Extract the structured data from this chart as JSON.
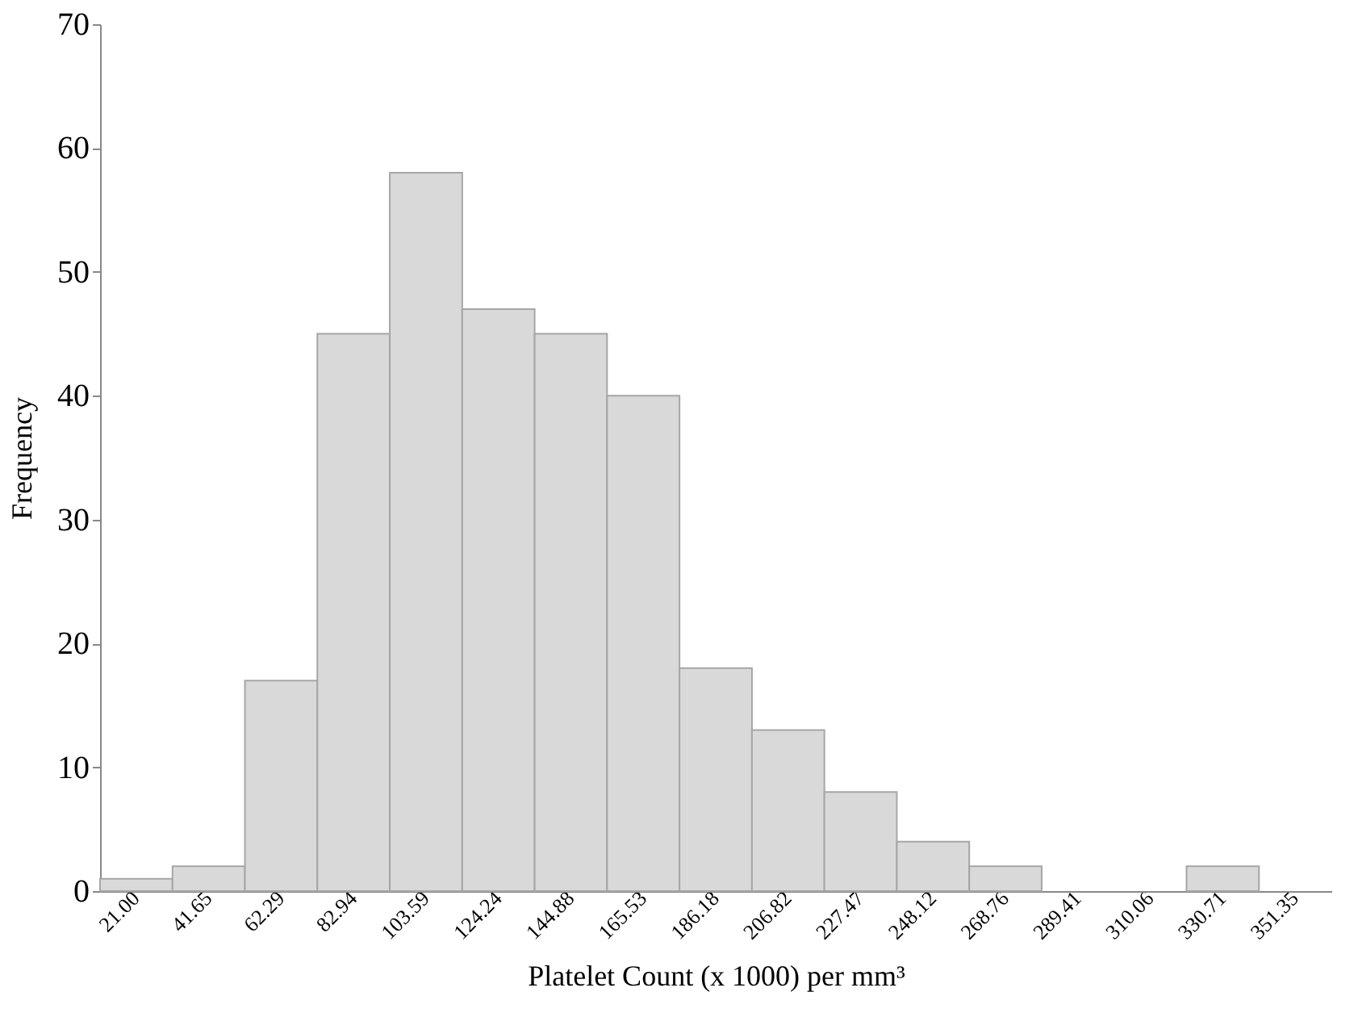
{
  "chart_data": {
    "type": "bar",
    "categories": [
      "21.00",
      "41.65",
      "62.29",
      "82.94",
      "103.59",
      "124.24",
      "144.88",
      "165.53",
      "186.18",
      "206.82",
      "227.47",
      "248.12",
      "268.76",
      "289.41",
      "310.06",
      "330.71",
      "351.35"
    ],
    "values": [
      1,
      2,
      17,
      45,
      58,
      47,
      45,
      40,
      18,
      13,
      8,
      4,
      2,
      0,
      0,
      2,
      0
    ],
    "color": "#d9d9d9",
    "xlabel": "Platelet Count (x 1000) per mm³",
    "ylabel": "Frequency",
    "ylim": [
      0,
      70
    ],
    "yticks": [
      0,
      10,
      20,
      30,
      40,
      50,
      60,
      70
    ],
    "grid": false
  }
}
